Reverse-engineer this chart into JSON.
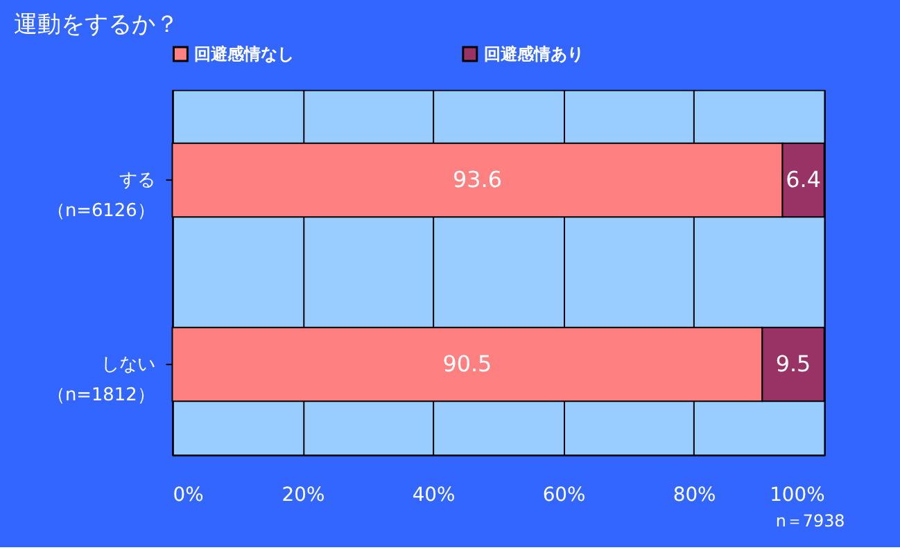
{
  "chart_data": {
    "type": "bar",
    "orientation": "horizontal",
    "stacked": true,
    "title": "運動をするか？",
    "categories": [
      "する（n=6126）",
      "しない（n=1812）"
    ],
    "series": [
      {
        "name": "回避感情なし",
        "color": "#ff8080",
        "values": [
          93.6,
          90.5
        ]
      },
      {
        "name": "回避感情あり",
        "color": "#993366",
        "values": [
          6.4,
          9.5
        ]
      }
    ],
    "xlim": [
      0,
      100
    ],
    "xticks": [
      {
        "value": 0,
        "label": "0%"
      },
      {
        "value": 20,
        "label": "20%"
      },
      {
        "value": 40,
        "label": "40%"
      },
      {
        "value": 60,
        "label": "60%"
      },
      {
        "value": 80,
        "label": "80%"
      },
      {
        "value": 100,
        "label": "100%"
      }
    ],
    "grid": "x",
    "legend": "top",
    "data_labels": true,
    "annotations": [
      "n＝7938"
    ]
  }
}
